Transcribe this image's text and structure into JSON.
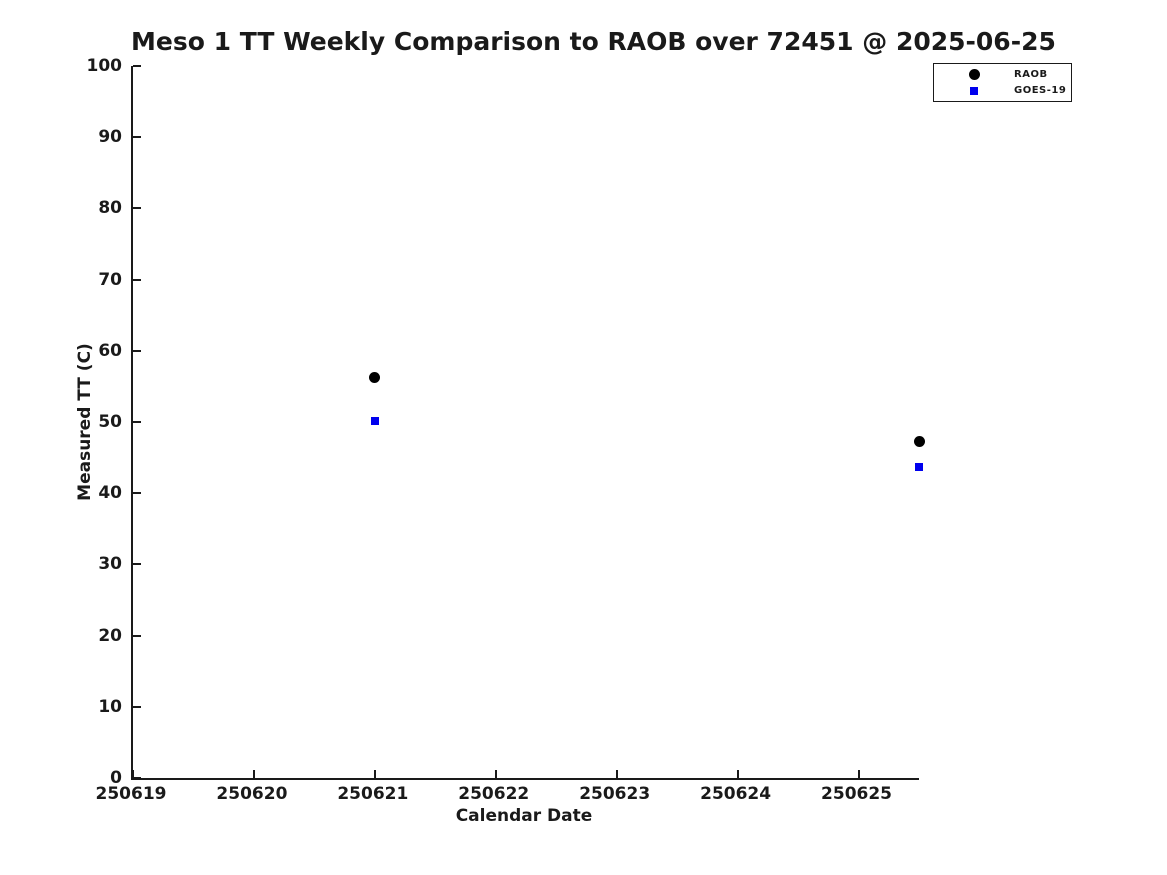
{
  "figure": {
    "background": "#ffffff",
    "text_color": "#1a1a1a"
  },
  "chart_data": {
    "type": "scatter",
    "title": "Meso 1 TT Weekly Comparison to RAOB over 72451 @ 2025-06-25",
    "xlabel": "Calendar Date",
    "ylabel": "Measured TT (C)",
    "xlim": [
      250619,
      250625.5
    ],
    "ylim": [
      0,
      100
    ],
    "x_ticks": [
      250619,
      250620,
      250621,
      250622,
      250623,
      250624,
      250625
    ],
    "y_ticks": [
      0,
      10,
      20,
      30,
      40,
      50,
      60,
      70,
      80,
      90,
      100
    ],
    "grid": false,
    "legend_position": "top-right",
    "series": [
      {
        "name": "RAOB",
        "marker": "circle",
        "color": "#000000",
        "marker_size": 11,
        "points": [
          {
            "x": 250621.0,
            "y": 56.2
          },
          {
            "x": 250625.5,
            "y": 47.2
          }
        ]
      },
      {
        "name": "GOES-19",
        "marker": "square",
        "color": "#0000ee",
        "marker_size": 8,
        "points": [
          {
            "x": 250621.0,
            "y": 50.1
          },
          {
            "x": 250625.5,
            "y": 43.7
          }
        ]
      }
    ]
  }
}
